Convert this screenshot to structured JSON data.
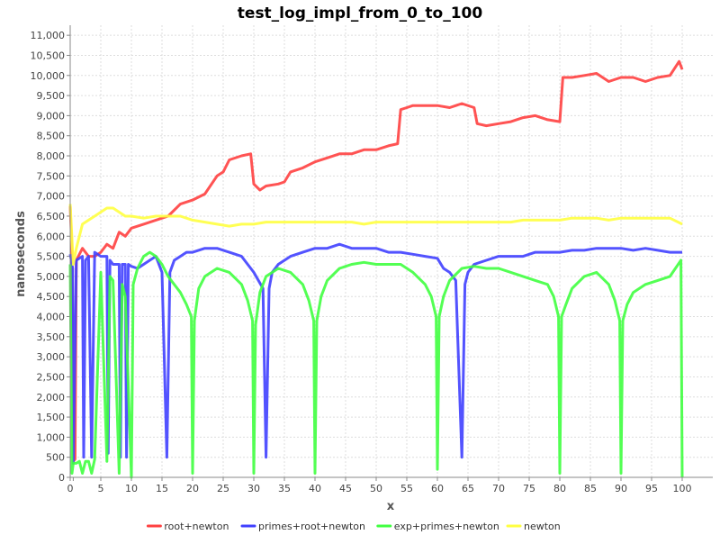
{
  "chart_data": {
    "type": "line",
    "title": "test_log_impl_from_0_to_100",
    "xlabel": "x",
    "ylabel": "nanoseconds",
    "xlim": [
      0,
      105
    ],
    "ylim": [
      0,
      11250
    ],
    "x_ticks": [
      0,
      5,
      10,
      15,
      20,
      25,
      30,
      35,
      40,
      45,
      50,
      55,
      60,
      65,
      70,
      75,
      80,
      85,
      90,
      95,
      100
    ],
    "x_tick_labels": [
      "0",
      "5",
      "10",
      "15",
      "20",
      "25",
      "30",
      "35",
      "40",
      "45",
      "50",
      "55",
      "60",
      "65",
      "70",
      "75",
      "80",
      "85",
      "90",
      "95",
      "100"
    ],
    "extra_x_tick": {
      "value": 0.5,
      "label": "0"
    },
    "y_ticks": [
      0,
      500,
      1000,
      1500,
      2000,
      2500,
      3000,
      3500,
      4000,
      4500,
      5000,
      5500,
      6000,
      6500,
      7000,
      7500,
      8000,
      8500,
      9000,
      9500,
      10000,
      10500,
      11000
    ],
    "y_tick_labels": [
      "0",
      "500",
      "1,000",
      "1,500",
      "2,000",
      "2,500",
      "3,000",
      "3,500",
      "4,000",
      "4,500",
      "5,000",
      "5,500",
      "6,000",
      "6,500",
      "7,000",
      "7,500",
      "8,000",
      "8,500",
      "9,000",
      "9,500",
      "10,000",
      "10,500",
      "11,000"
    ],
    "grid": true,
    "legend_position": "bottom",
    "series": [
      {
        "name": "root+newton",
        "color": "#ff4040",
        "points": [
          [
            0,
            6750
          ],
          [
            0.3,
            5600
          ],
          [
            0.5,
            400
          ],
          [
            0.8,
            450
          ],
          [
            1,
            5400
          ],
          [
            2,
            5700
          ],
          [
            3,
            5500
          ],
          [
            4,
            5500
          ],
          [
            5,
            5600
          ],
          [
            6,
            5800
          ],
          [
            7,
            5700
          ],
          [
            8,
            6100
          ],
          [
            9,
            6000
          ],
          [
            10,
            6200
          ],
          [
            12,
            6300
          ],
          [
            14,
            6400
          ],
          [
            16,
            6500
          ],
          [
            18,
            6800
          ],
          [
            20,
            6900
          ],
          [
            22,
            7050
          ],
          [
            24,
            7500
          ],
          [
            25,
            7600
          ],
          [
            26,
            7900
          ],
          [
            28,
            8000
          ],
          [
            29.5,
            8050
          ],
          [
            30,
            7300
          ],
          [
            31,
            7150
          ],
          [
            32,
            7250
          ],
          [
            34,
            7300
          ],
          [
            35,
            7350
          ],
          [
            36,
            7600
          ],
          [
            38,
            7700
          ],
          [
            40,
            7850
          ],
          [
            42,
            7950
          ],
          [
            44,
            8050
          ],
          [
            46,
            8050
          ],
          [
            48,
            8150
          ],
          [
            50,
            8150
          ],
          [
            52,
            8250
          ],
          [
            53.5,
            8300
          ],
          [
            54,
            9150
          ],
          [
            55,
            9200
          ],
          [
            56,
            9250
          ],
          [
            58,
            9250
          ],
          [
            60,
            9250
          ],
          [
            62,
            9200
          ],
          [
            64,
            9300
          ],
          [
            66,
            9200
          ],
          [
            66.5,
            8800
          ],
          [
            68,
            8750
          ],
          [
            70,
            8800
          ],
          [
            72,
            8850
          ],
          [
            74,
            8950
          ],
          [
            76,
            9000
          ],
          [
            78,
            8900
          ],
          [
            80,
            8850
          ],
          [
            80.5,
            9950
          ],
          [
            82,
            9950
          ],
          [
            84,
            10000
          ],
          [
            86,
            10050
          ],
          [
            88,
            9850
          ],
          [
            90,
            9950
          ],
          [
            92,
            9950
          ],
          [
            94,
            9850
          ],
          [
            96,
            9950
          ],
          [
            98,
            10000
          ],
          [
            99.5,
            10350
          ],
          [
            100,
            10150
          ]
        ]
      },
      {
        "name": "primes+root+newton",
        "color": "#4040ff",
        "points": [
          [
            0,
            5550
          ],
          [
            0.4,
            5200
          ],
          [
            0.5,
            350
          ],
          [
            1,
            5400
          ],
          [
            2,
            5500
          ],
          [
            2.2,
            500
          ],
          [
            2.5,
            5400
          ],
          [
            3,
            5500
          ],
          [
            3.5,
            500
          ],
          [
            4,
            5600
          ],
          [
            5,
            5500
          ],
          [
            6,
            5500
          ],
          [
            6.2,
            600
          ],
          [
            6.5,
            5400
          ],
          [
            7,
            5300
          ],
          [
            8,
            5300
          ],
          [
            8.2,
            500
          ],
          [
            8.5,
            5300
          ],
          [
            9,
            5300
          ],
          [
            9.2,
            500
          ],
          [
            9.5,
            5300
          ],
          [
            10,
            5250
          ],
          [
            11,
            5200
          ],
          [
            12,
            5300
          ],
          [
            13,
            5400
          ],
          [
            14,
            5500
          ],
          [
            15,
            5100
          ],
          [
            15.8,
            500
          ],
          [
            16.3,
            5100
          ],
          [
            17,
            5400
          ],
          [
            18,
            5500
          ],
          [
            19,
            5600
          ],
          [
            20,
            5600
          ],
          [
            22,
            5700
          ],
          [
            24,
            5700
          ],
          [
            26,
            5600
          ],
          [
            28,
            5500
          ],
          [
            29,
            5300
          ],
          [
            30,
            5100
          ],
          [
            31.5,
            4700
          ],
          [
            32,
            500
          ],
          [
            32.5,
            4700
          ],
          [
            33,
            5100
          ],
          [
            34,
            5300
          ],
          [
            36,
            5500
          ],
          [
            38,
            5600
          ],
          [
            40,
            5700
          ],
          [
            42,
            5700
          ],
          [
            44,
            5800
          ],
          [
            46,
            5700
          ],
          [
            48,
            5700
          ],
          [
            50,
            5700
          ],
          [
            52,
            5600
          ],
          [
            54,
            5600
          ],
          [
            56,
            5550
          ],
          [
            58,
            5500
          ],
          [
            60,
            5450
          ],
          [
            61,
            5200
          ],
          [
            62,
            5100
          ],
          [
            63,
            4900
          ],
          [
            64,
            500
          ],
          [
            64.5,
            4800
          ],
          [
            65,
            5100
          ],
          [
            66,
            5300
          ],
          [
            68,
            5400
          ],
          [
            70,
            5500
          ],
          [
            72,
            5500
          ],
          [
            74,
            5500
          ],
          [
            76,
            5600
          ],
          [
            78,
            5600
          ],
          [
            80,
            5600
          ],
          [
            82,
            5650
          ],
          [
            84,
            5650
          ],
          [
            86,
            5700
          ],
          [
            88,
            5700
          ],
          [
            90,
            5700
          ],
          [
            92,
            5650
          ],
          [
            94,
            5700
          ],
          [
            96,
            5650
          ],
          [
            98,
            5600
          ],
          [
            100,
            5600
          ]
        ]
      },
      {
        "name": "exp+primes+newton",
        "color": "#40ff40",
        "points": [
          [
            0,
            5300
          ],
          [
            0.3,
            100
          ],
          [
            0.5,
            350
          ],
          [
            1,
            350
          ],
          [
            1.5,
            400
          ],
          [
            2,
            100
          ],
          [
            2.5,
            400
          ],
          [
            3,
            400
          ],
          [
            3.5,
            100
          ],
          [
            4,
            450
          ],
          [
            5,
            5100
          ],
          [
            6,
            400
          ],
          [
            6.5,
            5000
          ],
          [
            7,
            4900
          ],
          [
            8,
            100
          ],
          [
            8.5,
            4800
          ],
          [
            9,
            4500
          ],
          [
            10,
            0
          ],
          [
            10.3,
            4800
          ],
          [
            11,
            5200
          ],
          [
            12,
            5500
          ],
          [
            13,
            5600
          ],
          [
            14,
            5500
          ],
          [
            15,
            5300
          ],
          [
            16,
            5000
          ],
          [
            17,
            4800
          ],
          [
            18,
            4600
          ],
          [
            19,
            4300
          ],
          [
            19.8,
            4000
          ],
          [
            20,
            100
          ],
          [
            20.3,
            3900
          ],
          [
            21,
            4700
          ],
          [
            22,
            5000
          ],
          [
            24,
            5200
          ],
          [
            26,
            5100
          ],
          [
            28,
            4800
          ],
          [
            29,
            4400
          ],
          [
            29.8,
            3900
          ],
          [
            30,
            100
          ],
          [
            30.3,
            3800
          ],
          [
            31,
            4600
          ],
          [
            32,
            5000
          ],
          [
            34,
            5200
          ],
          [
            36,
            5100
          ],
          [
            38,
            4800
          ],
          [
            39,
            4400
          ],
          [
            39.8,
            3900
          ],
          [
            40,
            100
          ],
          [
            40.3,
            3900
          ],
          [
            41,
            4500
          ],
          [
            42,
            4900
          ],
          [
            44,
            5200
          ],
          [
            46,
            5300
          ],
          [
            48,
            5350
          ],
          [
            50,
            5300
          ],
          [
            52,
            5300
          ],
          [
            54,
            5300
          ],
          [
            56,
            5100
          ],
          [
            58,
            4800
          ],
          [
            59,
            4500
          ],
          [
            59.8,
            4000
          ],
          [
            60,
            200
          ],
          [
            60.3,
            4000
          ],
          [
            61,
            4500
          ],
          [
            62,
            4900
          ],
          [
            64,
            5200
          ],
          [
            66,
            5250
          ],
          [
            68,
            5200
          ],
          [
            70,
            5200
          ],
          [
            72,
            5100
          ],
          [
            74,
            5000
          ],
          [
            76,
            4900
          ],
          [
            78,
            4800
          ],
          [
            79,
            4500
          ],
          [
            79.8,
            4000
          ],
          [
            80,
            100
          ],
          [
            80.3,
            4000
          ],
          [
            81,
            4300
          ],
          [
            82,
            4700
          ],
          [
            84,
            5000
          ],
          [
            86,
            5100
          ],
          [
            88,
            4800
          ],
          [
            89,
            4400
          ],
          [
            89.8,
            3900
          ],
          [
            90,
            100
          ],
          [
            90.3,
            3900
          ],
          [
            91,
            4300
          ],
          [
            92,
            4600
          ],
          [
            94,
            4800
          ],
          [
            96,
            4900
          ],
          [
            98,
            5000
          ],
          [
            99.8,
            5400
          ],
          [
            100,
            0
          ]
        ]
      },
      {
        "name": "newton",
        "color": "#ffff40",
        "points": [
          [
            0,
            6800
          ],
          [
            0.5,
            5300
          ],
          [
            1,
            5700
          ],
          [
            2,
            6300
          ],
          [
            3,
            6400
          ],
          [
            4,
            6500
          ],
          [
            5,
            6600
          ],
          [
            6,
            6700
          ],
          [
            7,
            6700
          ],
          [
            8,
            6600
          ],
          [
            9,
            6500
          ],
          [
            10,
            6500
          ],
          [
            12,
            6450
          ],
          [
            14,
            6500
          ],
          [
            16,
            6500
          ],
          [
            18,
            6500
          ],
          [
            20,
            6400
          ],
          [
            22,
            6350
          ],
          [
            24,
            6300
          ],
          [
            26,
            6250
          ],
          [
            28,
            6300
          ],
          [
            30,
            6300
          ],
          [
            32,
            6350
          ],
          [
            34,
            6350
          ],
          [
            36,
            6350
          ],
          [
            38,
            6350
          ],
          [
            40,
            6350
          ],
          [
            42,
            6350
          ],
          [
            44,
            6350
          ],
          [
            46,
            6350
          ],
          [
            48,
            6300
          ],
          [
            50,
            6350
          ],
          [
            52,
            6350
          ],
          [
            54,
            6350
          ],
          [
            56,
            6350
          ],
          [
            58,
            6350
          ],
          [
            60,
            6350
          ],
          [
            62,
            6350
          ],
          [
            64,
            6350
          ],
          [
            66,
            6350
          ],
          [
            68,
            6350
          ],
          [
            70,
            6350
          ],
          [
            72,
            6350
          ],
          [
            74,
            6400
          ],
          [
            76,
            6400
          ],
          [
            78,
            6400
          ],
          [
            80,
            6400
          ],
          [
            82,
            6450
          ],
          [
            84,
            6450
          ],
          [
            86,
            6450
          ],
          [
            88,
            6400
          ],
          [
            90,
            6450
          ],
          [
            92,
            6450
          ],
          [
            94,
            6450
          ],
          [
            96,
            6450
          ],
          [
            98,
            6450
          ],
          [
            100,
            6300
          ]
        ]
      }
    ]
  }
}
